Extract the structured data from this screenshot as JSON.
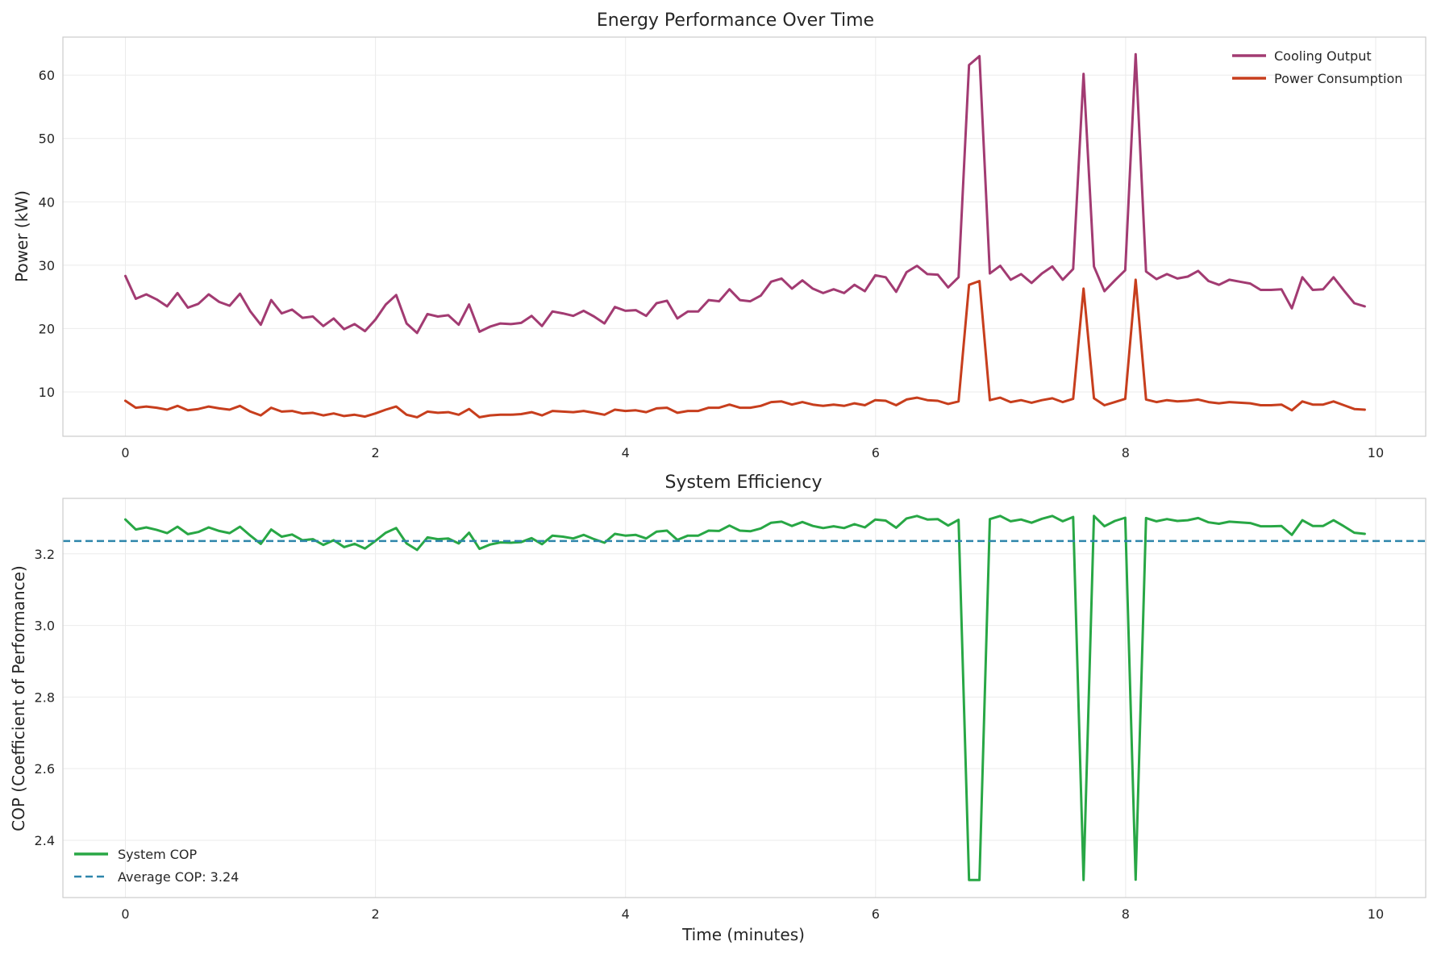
{
  "chart_data": [
    {
      "type": "line",
      "title": "Energy Performance Over Time",
      "xlabel": "",
      "ylabel": "Power (kW)",
      "xlim": [
        -0.5,
        10.4
      ],
      "ylim": [
        3,
        66
      ],
      "xticks": [
        0,
        2,
        4,
        6,
        8,
        10
      ],
      "yticks": [
        10,
        20,
        30,
        40,
        50,
        60
      ],
      "grid": true,
      "legend_position": "top-right",
      "x_start": 0,
      "x_step": 0.0833,
      "series": [
        {
          "name": "Cooling Output",
          "color": "#a23b72",
          "values": [
            28.3,
            24.7,
            25.4,
            24.6,
            23.5,
            25.6,
            23.3,
            23.9,
            25.4,
            24.2,
            23.6,
            25.5,
            22.7,
            20.6,
            24.5,
            22.4,
            23.0,
            21.7,
            21.9,
            20.4,
            21.6,
            19.9,
            20.7,
            19.6,
            21.4,
            23.8,
            25.3,
            20.8,
            19.3,
            22.3,
            21.9,
            22.1,
            20.6,
            23.8,
            19.5,
            20.3,
            20.8,
            20.7,
            20.9,
            22.0,
            20.4,
            22.7,
            22.4,
            22.0,
            22.8,
            21.9,
            20.8,
            23.4,
            22.8,
            22.9,
            22.0,
            24.0,
            24.4,
            21.6,
            22.7,
            22.7,
            24.5,
            24.3,
            26.2,
            24.5,
            24.3,
            25.2,
            27.4,
            27.9,
            26.3,
            27.6,
            26.3,
            25.6,
            26.2,
            25.6,
            26.9,
            25.9,
            28.4,
            28.1,
            25.8,
            28.9,
            29.9,
            28.6,
            28.5,
            26.5,
            28.1,
            61.6,
            63.0,
            28.7,
            29.9,
            27.7,
            28.6,
            27.2,
            28.7,
            29.8,
            27.7,
            29.4,
            60.2,
            29.8,
            25.9,
            27.6,
            29.2,
            63.3,
            29.0,
            27.8,
            28.6,
            27.9,
            28.2,
            29.1,
            27.5,
            26.9,
            27.7,
            27.4,
            27.1,
            26.1,
            26.1,
            26.2,
            23.2,
            28.1,
            26.1,
            26.2,
            28.1,
            26.0,
            24.0,
            23.5
          ]
        },
        {
          "name": "Power Consumption",
          "color": "#c73e1d",
          "values": [
            8.6,
            7.5,
            7.7,
            7.5,
            7.2,
            7.8,
            7.1,
            7.3,
            7.7,
            7.4,
            7.2,
            7.8,
            6.9,
            6.3,
            7.5,
            6.9,
            7.0,
            6.6,
            6.7,
            6.3,
            6.6,
            6.2,
            6.4,
            6.1,
            6.6,
            7.2,
            7.7,
            6.4,
            6.0,
            6.9,
            6.7,
            6.8,
            6.4,
            7.3,
            6.0,
            6.3,
            6.4,
            6.4,
            6.5,
            6.8,
            6.3,
            7.0,
            6.9,
            6.8,
            7.0,
            6.7,
            6.4,
            7.2,
            7.0,
            7.1,
            6.8,
            7.4,
            7.5,
            6.7,
            7.0,
            7.0,
            7.5,
            7.5,
            8.0,
            7.5,
            7.5,
            7.8,
            8.4,
            8.5,
            8.0,
            8.4,
            8.0,
            7.8,
            8.0,
            7.8,
            8.2,
            7.9,
            8.7,
            8.6,
            7.9,
            8.8,
            9.1,
            8.7,
            8.6,
            8.1,
            8.5,
            26.9,
            27.5,
            8.7,
            9.1,
            8.4,
            8.7,
            8.3,
            8.7,
            9.0,
            8.4,
            8.9,
            26.3,
            9.0,
            7.9,
            8.4,
            8.9,
            27.7,
            8.8,
            8.4,
            8.7,
            8.5,
            8.6,
            8.8,
            8.4,
            8.2,
            8.4,
            8.3,
            8.2,
            7.9,
            7.9,
            8.0,
            7.1,
            8.5,
            8.0,
            8.0,
            8.5,
            7.9,
            7.3,
            7.2
          ]
        }
      ]
    },
    {
      "type": "line",
      "title": "System Efficiency",
      "xlabel": "Time (minutes)",
      "ylabel": "COP (Coefficient of Performance)",
      "xlim": [
        -0.5,
        10.4
      ],
      "ylim": [
        2.24,
        3.355
      ],
      "xticks": [
        0,
        2,
        4,
        6,
        8,
        10
      ],
      "yticks": [
        2.4,
        2.6,
        2.8,
        3.0,
        3.2
      ],
      "grid": true,
      "legend_position": "lower-left",
      "x_start": 0,
      "x_step": 0.0833,
      "series": [
        {
          "name": "System COP",
          "color": "#28a745",
          "values": [
            3.296,
            3.268,
            3.274,
            3.267,
            3.258,
            3.276,
            3.255,
            3.261,
            3.274,
            3.264,
            3.258,
            3.276,
            3.251,
            3.228,
            3.268,
            3.248,
            3.254,
            3.238,
            3.241,
            3.225,
            3.238,
            3.219,
            3.228,
            3.215,
            3.236,
            3.259,
            3.272,
            3.229,
            3.211,
            3.246,
            3.241,
            3.243,
            3.229,
            3.259,
            3.214,
            3.226,
            3.232,
            3.231,
            3.233,
            3.244,
            3.227,
            3.251,
            3.248,
            3.243,
            3.253,
            3.241,
            3.231,
            3.256,
            3.251,
            3.253,
            3.243,
            3.262,
            3.265,
            3.239,
            3.251,
            3.251,
            3.265,
            3.264,
            3.279,
            3.265,
            3.263,
            3.271,
            3.287,
            3.29,
            3.278,
            3.289,
            3.278,
            3.272,
            3.277,
            3.272,
            3.283,
            3.274,
            3.296,
            3.293,
            3.273,
            3.299,
            3.306,
            3.296,
            3.297,
            3.279,
            3.295,
            2.289,
            2.289,
            3.297,
            3.306,
            3.291,
            3.296,
            3.287,
            3.298,
            3.306,
            3.291,
            3.303,
            2.289,
            3.306,
            3.277,
            3.292,
            3.301,
            2.29,
            3.3,
            3.291,
            3.297,
            3.292,
            3.294,
            3.3,
            3.288,
            3.284,
            3.29,
            3.288,
            3.286,
            3.277,
            3.277,
            3.278,
            3.253,
            3.294,
            3.278,
            3.278,
            3.294,
            3.277,
            3.259,
            3.256
          ]
        },
        {
          "name": "Average COP: 3.24",
          "color": "#2e86ab",
          "dashed": true,
          "constant": 3.236
        }
      ]
    }
  ]
}
